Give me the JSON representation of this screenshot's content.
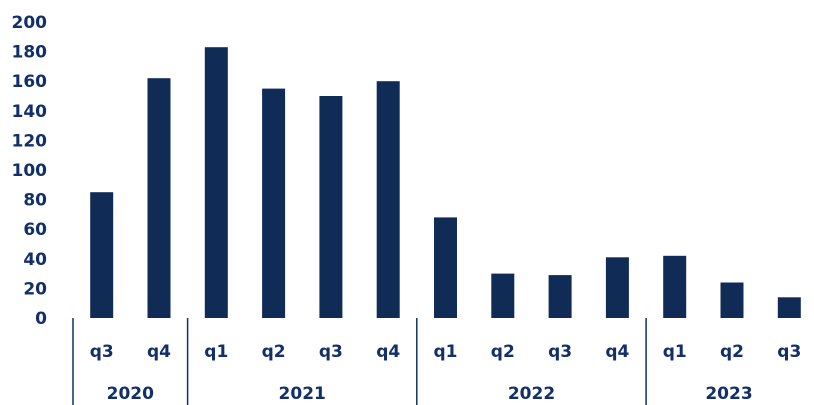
{
  "chart_data": {
    "type": "bar",
    "categories": [
      "q3",
      "q4",
      "q1",
      "q2",
      "q3",
      "q4",
      "q1",
      "q2",
      "q3",
      "q4",
      "q1",
      "q2",
      "q3"
    ],
    "groups": [
      {
        "label": "2020",
        "count": 2
      },
      {
        "label": "2021",
        "count": 4
      },
      {
        "label": "2022",
        "count": 4
      },
      {
        "label": "2023",
        "count": 3
      }
    ],
    "values": [
      85,
      162,
      183,
      155,
      150,
      160,
      68,
      30,
      29,
      41,
      42,
      24,
      14
    ],
    "ylim": [
      0,
      200
    ],
    "yticks": [
      0,
      20,
      40,
      60,
      80,
      100,
      120,
      140,
      160,
      180,
      200
    ],
    "title": "",
    "xlabel": "",
    "ylabel": "",
    "grid": false,
    "bar_color": "#112b57",
    "text_color": "#11306a"
  }
}
